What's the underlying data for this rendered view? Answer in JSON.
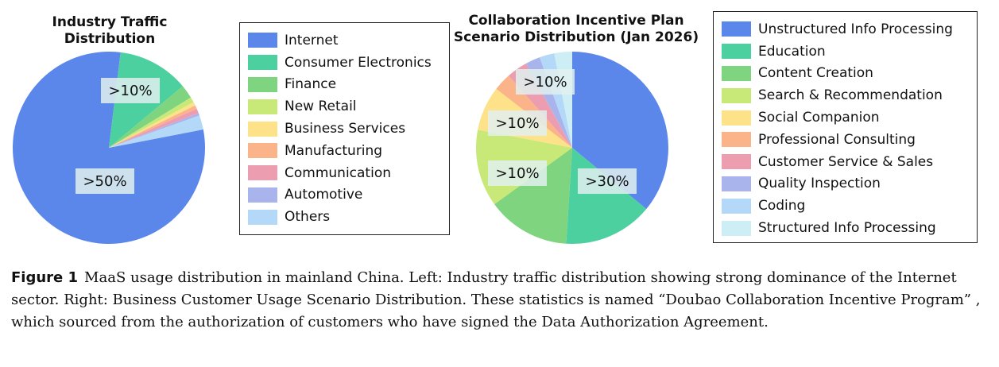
{
  "chart_data": [
    {
      "type": "pie",
      "title": "Industry Traffic\nDistribution",
      "categories": [
        "Internet",
        "Consumer Electronics",
        "Finance",
        "New Retail",
        "Business Services",
        "Manufacturing",
        "Communication",
        "Automotive",
        "Others"
      ],
      "values": [
        80,
        12,
        2.3,
        0.9,
        0.6,
        0.6,
        0.8,
        0.4,
        2.4
      ],
      "colors": [
        "#5b87eb",
        "#4dd0a0",
        "#7fd47f",
        "#c8e878",
        "#fde28a",
        "#fbb48a",
        "#ec9db0",
        "#aab4ec",
        "#b4d8f7"
      ],
      "slice_labels": [
        ">50%",
        ">10%",
        "",
        "",
        "",
        "",
        "",
        "",
        ""
      ],
      "legend": "right"
    },
    {
      "type": "pie",
      "title": "Collaboration Incentive Plan\nScenario Distribution (Jan 2026)",
      "categories": [
        "Unstructured Info Processing",
        "Education",
        "Content Creation",
        "Search & Recommendation",
        "Social Companion",
        "Professional Consulting",
        "Customer Service & Sales",
        "Quality Inspection",
        "Coding",
        "Structured Info Processing"
      ],
      "values": [
        36,
        15,
        14,
        13,
        7.5,
        3,
        3.5,
        2.5,
        2.5,
        3
      ],
      "colors": [
        "#5b87eb",
        "#4dd0a0",
        "#7fd47f",
        "#c8e878",
        "#fde28a",
        "#fbb48a",
        "#ec9db0",
        "#aab4ec",
        "#b4d8f7",
        "#cdeef4"
      ],
      "slice_labels": [
        ">30%",
        ">10%",
        ">10%",
        ">10%",
        "",
        "",
        "",
        "",
        "",
        ""
      ],
      "legend": "right"
    }
  ],
  "caption": {
    "label": "Figure 1",
    "text": "MaaS usage distribution in mainland China. Left: Industry traffic distribution showing strong dominance of the Internet sector. Right: Business Customer Usage Scenario Distribution. These statistics is named “Doubao Collaboration Incentive Program” , which sourced from the authorization of customers who have signed the Data Authorization Agreement."
  }
}
